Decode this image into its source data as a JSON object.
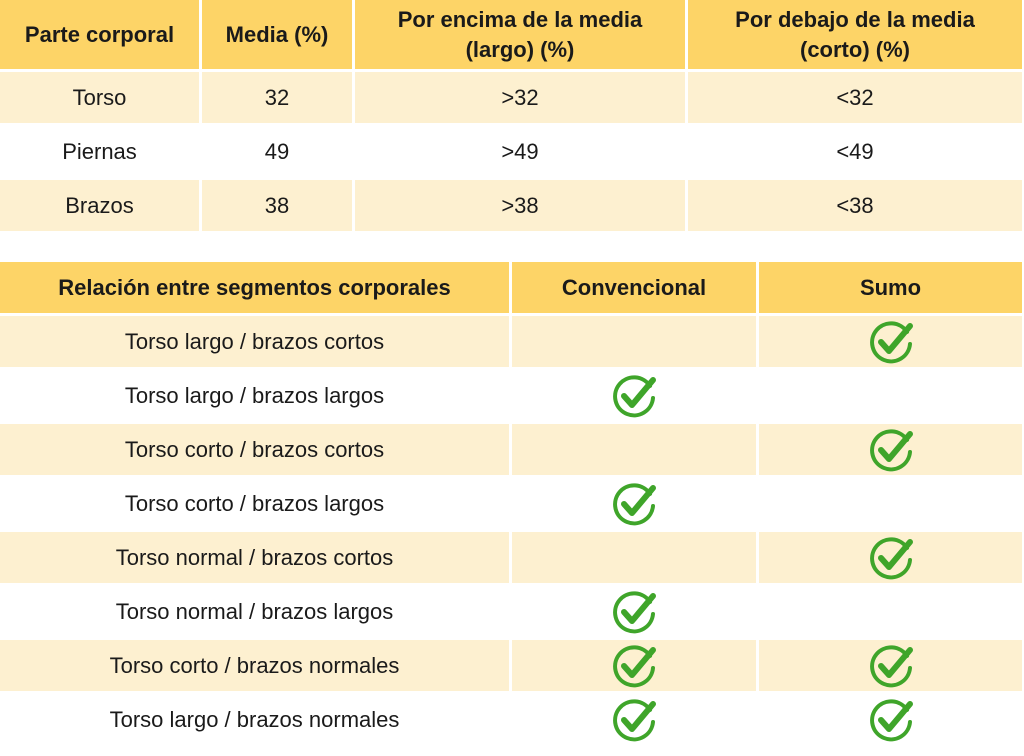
{
  "table1": {
    "headers": [
      "Parte corporal",
      "Media (%)",
      "Por encima de la media\n(largo) (%)",
      "Por debajo de la media\n(corto) (%)"
    ],
    "rows": [
      [
        "Torso",
        "32",
        ">32",
        "<32"
      ],
      [
        "Piernas",
        "49",
        ">49",
        "<49"
      ],
      [
        "Brazos",
        "38",
        ">38",
        "<38"
      ]
    ]
  },
  "table2": {
    "headers": [
      "Relación entre segmentos corporales",
      "Convencional",
      "Sumo"
    ],
    "rows": [
      {
        "label": "Torso largo / brazos cortos",
        "convencional": false,
        "sumo": true
      },
      {
        "label": "Torso largo / brazos largos",
        "convencional": true,
        "sumo": false
      },
      {
        "label": "Torso corto / brazos cortos",
        "convencional": false,
        "sumo": true
      },
      {
        "label": "Torso corto / brazos largos",
        "convencional": true,
        "sumo": false
      },
      {
        "label": "Torso normal / brazos cortos",
        "convencional": false,
        "sumo": true
      },
      {
        "label": "Torso normal / brazos largos",
        "convencional": true,
        "sumo": false
      },
      {
        "label": "Torso corto / brazos normales",
        "convencional": true,
        "sumo": true
      },
      {
        "label": "Torso largo / brazos normales",
        "convencional": true,
        "sumo": true
      }
    ]
  },
  "colors": {
    "header_bg": "#fdd467",
    "row_tint": "#fdf0d0",
    "check_green": "#3fa52a"
  },
  "icons": {
    "check": "check-circle-icon"
  }
}
